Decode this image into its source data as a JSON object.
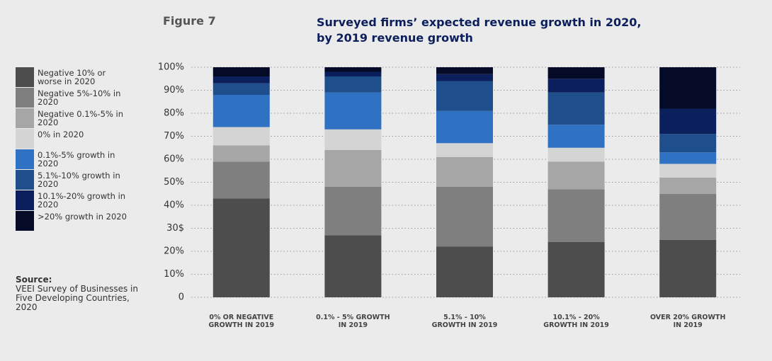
{
  "chart_data": {
    "type": "stacked_bar",
    "figure_label": "Figure 7",
    "title": "Surveyed firms’ expected revenue growth in 2020,",
    "subtitle": "by 2019 revenue growth",
    "source_label": "Source:",
    "source": "VEEI Survey of Businesses in Five Developing Countries, 2020",
    "categories": [
      "0% OR NEGATIVE GROWTH IN 2019",
      "0.1% - 5% GROWTH IN 2019",
      "5.1% - 10% GROWTH IN 2019",
      "10.1% - 20% GROWTH IN 2019",
      "OVER 20% GROWTH IN 2019"
    ],
    "series": [
      {
        "name": "Negative 10% or worse in 2020",
        "color": "#4d4d4d",
        "values": [
          43,
          27,
          22,
          24,
          25
        ]
      },
      {
        "name": "Negative 5%-10% in 2020",
        "color": "#7f7f7f",
        "values": [
          16,
          21,
          26,
          23,
          20
        ]
      },
      {
        "name": "Negative 0.1%-5% in 2020",
        "color": "#a6a6a6",
        "values": [
          7,
          16,
          13,
          12,
          7
        ]
      },
      {
        "name": "0% in 2020",
        "color": "#d4d4d4",
        "values": [
          8,
          9,
          6,
          6,
          6
        ]
      },
      {
        "name": "0.1%-5% growth in 2020",
        "color": "#2f72c4",
        "values": [
          14,
          16,
          14,
          10,
          5
        ]
      },
      {
        "name": "5.1%-10% growth in 2020",
        "color": "#1f4e8c",
        "values": [
          5,
          7,
          13,
          14,
          8
        ]
      },
      {
        "name": "10.1%-20% growth in 2020",
        "color": "#0b1f5c",
        "values": [
          3,
          2,
          3,
          6,
          11
        ]
      },
      {
        "name": ">20% growth in 2020",
        "color": "#050a26",
        "values": [
          4,
          2,
          3,
          5,
          18
        ]
      }
    ],
    "ylim": [
      0,
      100
    ],
    "yticks": [
      0,
      {
        "value": 10,
        "label": "10%"
      },
      {
        "value": 20,
        "label": "20%"
      },
      {
        "value": 30,
        "label": "30$"
      },
      {
        "value": 40,
        "label": "40%"
      },
      {
        "value": 50,
        "label": "50%"
      },
      {
        "value": 60,
        "label": "60%"
      },
      {
        "value": 70,
        "label": "70%"
      },
      {
        "value": 80,
        "label": "80%"
      },
      {
        "value": 90,
        "label": "90%"
      },
      {
        "value": 100,
        "label": "100%"
      }
    ],
    "grid": true
  }
}
